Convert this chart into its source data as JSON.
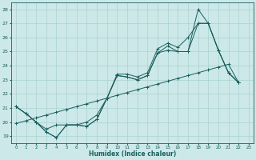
{
  "xlabel": "Humidex (Indice chaleur)",
  "xlim": [
    -0.5,
    23.5
  ],
  "ylim": [
    18.5,
    28.5
  ],
  "xticks": [
    0,
    1,
    2,
    3,
    4,
    5,
    6,
    7,
    8,
    9,
    10,
    11,
    12,
    13,
    14,
    15,
    16,
    17,
    18,
    19,
    20,
    21,
    22,
    23
  ],
  "yticks": [
    19,
    20,
    21,
    22,
    23,
    24,
    25,
    26,
    27,
    28
  ],
  "bg_color": "#cde8e8",
  "grid_color": "#aad0d0",
  "line_color": "#1a5f5f",
  "lines": [
    [
      21.1,
      20.6,
      20.0,
      19.3,
      18.9,
      19.8,
      19.8,
      19.7,
      20.2,
      21.7,
      23.3,
      23.2,
      23.0,
      23.3,
      24.9,
      25.1,
      25.0,
      25.0,
      28.0,
      27.0,
      25.1,
      23.5,
      22.8
    ],
    [
      21.1,
      20.6,
      20.0,
      19.3,
      18.9,
      19.8,
      19.8,
      19.7,
      20.2,
      21.7,
      23.3,
      23.2,
      23.0,
      23.3,
      24.9,
      25.4,
      25.0,
      25.0,
      27.0,
      27.0,
      25.1,
      23.5,
      22.8
    ],
    [
      21.1,
      20.6,
      20.0,
      19.5,
      19.8,
      19.8,
      19.8,
      20.0,
      20.5,
      21.7,
      23.4,
      23.4,
      23.2,
      23.5,
      25.2,
      25.6,
      25.3,
      26.0,
      27.0,
      27.0,
      25.1,
      23.5,
      22.8
    ],
    [
      19.9,
      20.1,
      20.3,
      20.5,
      20.7,
      20.9,
      21.1,
      21.3,
      21.5,
      21.7,
      21.9,
      22.1,
      22.3,
      22.5,
      22.7,
      22.9,
      23.1,
      23.3,
      23.5,
      23.7,
      23.9,
      24.1,
      22.8
    ]
  ]
}
